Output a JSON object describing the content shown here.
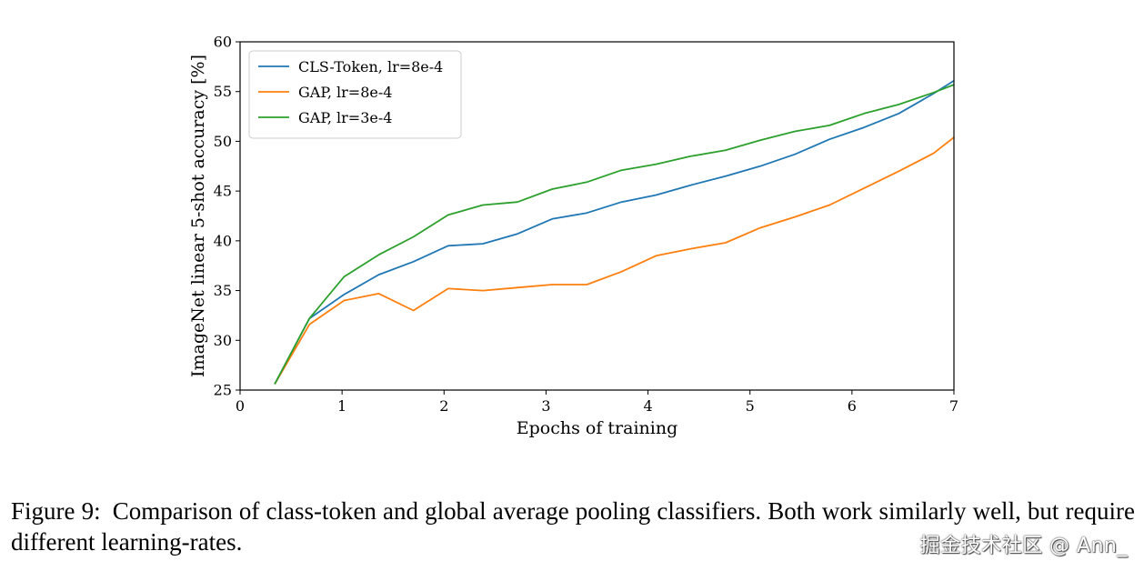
{
  "chart_data": {
    "type": "line",
    "title": "",
    "xlabel": "Epochs of training",
    "ylabel": "ImageNet linear 5-shot accuracy [%]",
    "xlim": [
      0,
      7
    ],
    "ylim": [
      25,
      60
    ],
    "xticks": [
      0,
      1,
      2,
      3,
      4,
      5,
      6,
      7
    ],
    "yticks": [
      25,
      30,
      35,
      40,
      45,
      50,
      55,
      60
    ],
    "grid": false,
    "legend_position": "top-left",
    "x": [
      0.34,
      0.68,
      1.02,
      1.36,
      1.7,
      2.04,
      2.38,
      2.72,
      3.06,
      3.4,
      3.74,
      4.08,
      4.42,
      4.76,
      5.1,
      5.44,
      5.78,
      6.12,
      6.46,
      6.8,
      7.0
    ],
    "series": [
      {
        "name": "CLS-Token, lr=8e-4",
        "color": "#1f77b4",
        "values": [
          25.6,
          32.2,
          34.6,
          36.6,
          37.9,
          39.5,
          39.7,
          40.7,
          42.2,
          42.8,
          43.9,
          44.6,
          45.6,
          46.5,
          47.5,
          48.7,
          50.2,
          51.4,
          52.8,
          54.8,
          56.1
        ]
      },
      {
        "name": "GAP, lr=8e-4",
        "color": "#ff7f0e",
        "values": [
          25.6,
          31.6,
          34.0,
          34.7,
          33.0,
          35.2,
          35.0,
          35.3,
          35.6,
          35.6,
          36.9,
          38.5,
          39.2,
          39.8,
          41.3,
          42.4,
          43.6,
          45.3,
          47.0,
          48.8,
          50.4
        ]
      },
      {
        "name": "GAP, lr=3e-4",
        "color": "#2ca02c",
        "values": [
          25.6,
          32.2,
          36.4,
          38.6,
          40.4,
          42.6,
          43.6,
          43.9,
          45.2,
          45.9,
          47.1,
          47.7,
          48.5,
          49.1,
          50.1,
          51.0,
          51.6,
          52.8,
          53.7,
          54.9,
          55.7
        ]
      }
    ]
  },
  "caption": {
    "label": "Figure 9:",
    "text": "Comparison of class-token and global average pooling classifiers. Both work similarly well, but require different learning-rates."
  },
  "watermark": "掘金技术社区 @ Ann_"
}
